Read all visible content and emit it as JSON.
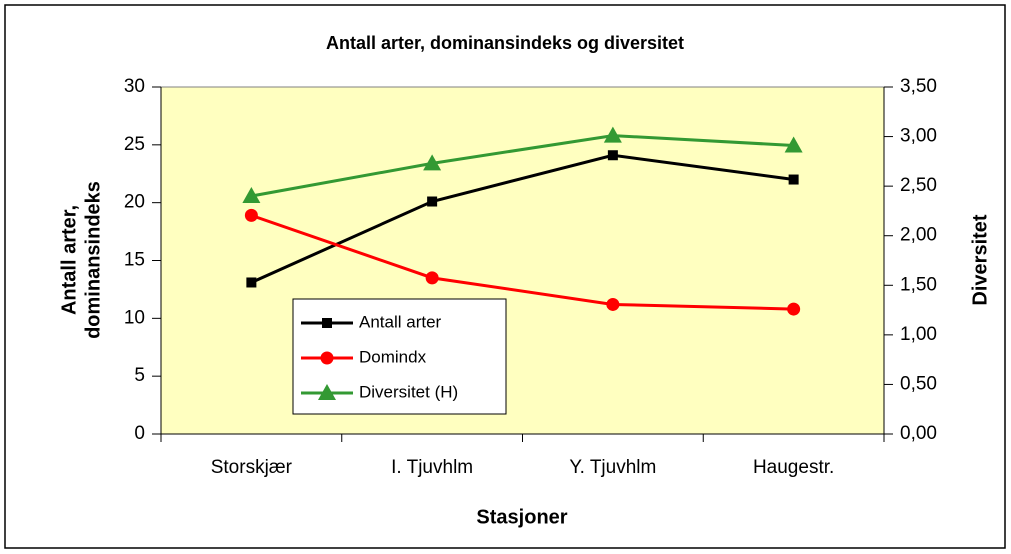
{
  "chart_data": {
    "type": "line",
    "title": "Antall arter, dominansindeks og diversitet",
    "x_label": "Stasjoner",
    "y_label": [
      "Antall arter,",
      "dominansindeks"
    ],
    "y2_label": "Diversitet",
    "categories": [
      "Storskjær",
      "I. Tjuvhlm",
      "Y. Tjuvhlm",
      "Haugestr."
    ],
    "ylim": [
      0,
      30
    ],
    "yticks": [
      0,
      5,
      10,
      15,
      20,
      25,
      30
    ],
    "y2lim": [
      0,
      3.5
    ],
    "y2ticks": [
      {
        "value": 0,
        "label": "0,00"
      },
      {
        "value": 0.5,
        "label": "0,50"
      },
      {
        "value": 1,
        "label": "1,00"
      },
      {
        "value": 1.5,
        "label": "1,50"
      },
      {
        "value": 2,
        "label": "2,00"
      },
      {
        "value": 2.5,
        "label": "2,50"
      },
      {
        "value": 3,
        "label": "3,00"
      },
      {
        "value": 3.5,
        "label": "3,50"
      }
    ],
    "grid": false,
    "background": "#ffffc0",
    "series": [
      {
        "name": "Antall arter",
        "color": "#000000",
        "marker": "square",
        "values": [
          13.1,
          20.1,
          24.1,
          22.0
        ]
      },
      {
        "name": "Domindx",
        "color": "#ff0000",
        "marker": "circle",
        "values": [
          18.9,
          13.5,
          11.2,
          10.8
        ]
      },
      {
        "name": "Diversitet (H)",
        "color": "#339933",
        "marker": "triangle",
        "axis": "y2",
        "values": [
          2.4,
          2.73,
          3.01,
          2.91
        ]
      }
    ]
  }
}
